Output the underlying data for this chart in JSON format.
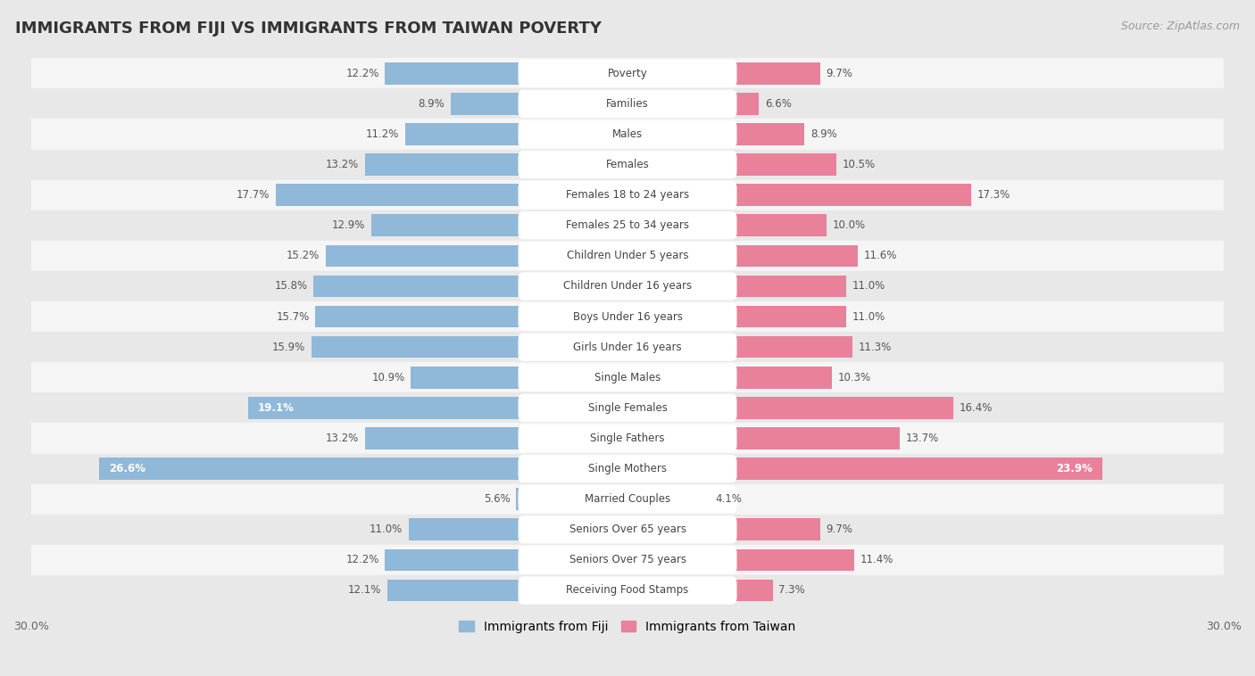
{
  "title": "IMMIGRANTS FROM FIJI VS IMMIGRANTS FROM TAIWAN POVERTY",
  "source": "Source: ZipAtlas.com",
  "categories": [
    "Poverty",
    "Families",
    "Males",
    "Females",
    "Females 18 to 24 years",
    "Females 25 to 34 years",
    "Children Under 5 years",
    "Children Under 16 years",
    "Boys Under 16 years",
    "Girls Under 16 years",
    "Single Males",
    "Single Females",
    "Single Fathers",
    "Single Mothers",
    "Married Couples",
    "Seniors Over 65 years",
    "Seniors Over 75 years",
    "Receiving Food Stamps"
  ],
  "fiji_values": [
    12.2,
    8.9,
    11.2,
    13.2,
    17.7,
    12.9,
    15.2,
    15.8,
    15.7,
    15.9,
    10.9,
    19.1,
    13.2,
    26.6,
    5.6,
    11.0,
    12.2,
    12.1
  ],
  "taiwan_values": [
    9.7,
    6.6,
    8.9,
    10.5,
    17.3,
    10.0,
    11.6,
    11.0,
    11.0,
    11.3,
    10.3,
    16.4,
    13.7,
    23.9,
    4.1,
    9.7,
    11.4,
    7.3
  ],
  "fiji_color": "#90b8d8",
  "taiwan_color": "#e9819b",
  "fiji_label": "Immigrants from Fiji",
  "taiwan_label": "Immigrants from Taiwan",
  "x_max": 30.0,
  "row_color_even": "#f5f5f5",
  "row_color_odd": "#e8e8e8",
  "pill_color": "#ffffff",
  "title_fontsize": 13,
  "source_fontsize": 9,
  "bar_height": 0.72,
  "bar_label_fontsize": 8.5,
  "cat_label_fontsize": 8.5,
  "label_color_outside": "#555555",
  "label_color_inside": "#ffffff"
}
